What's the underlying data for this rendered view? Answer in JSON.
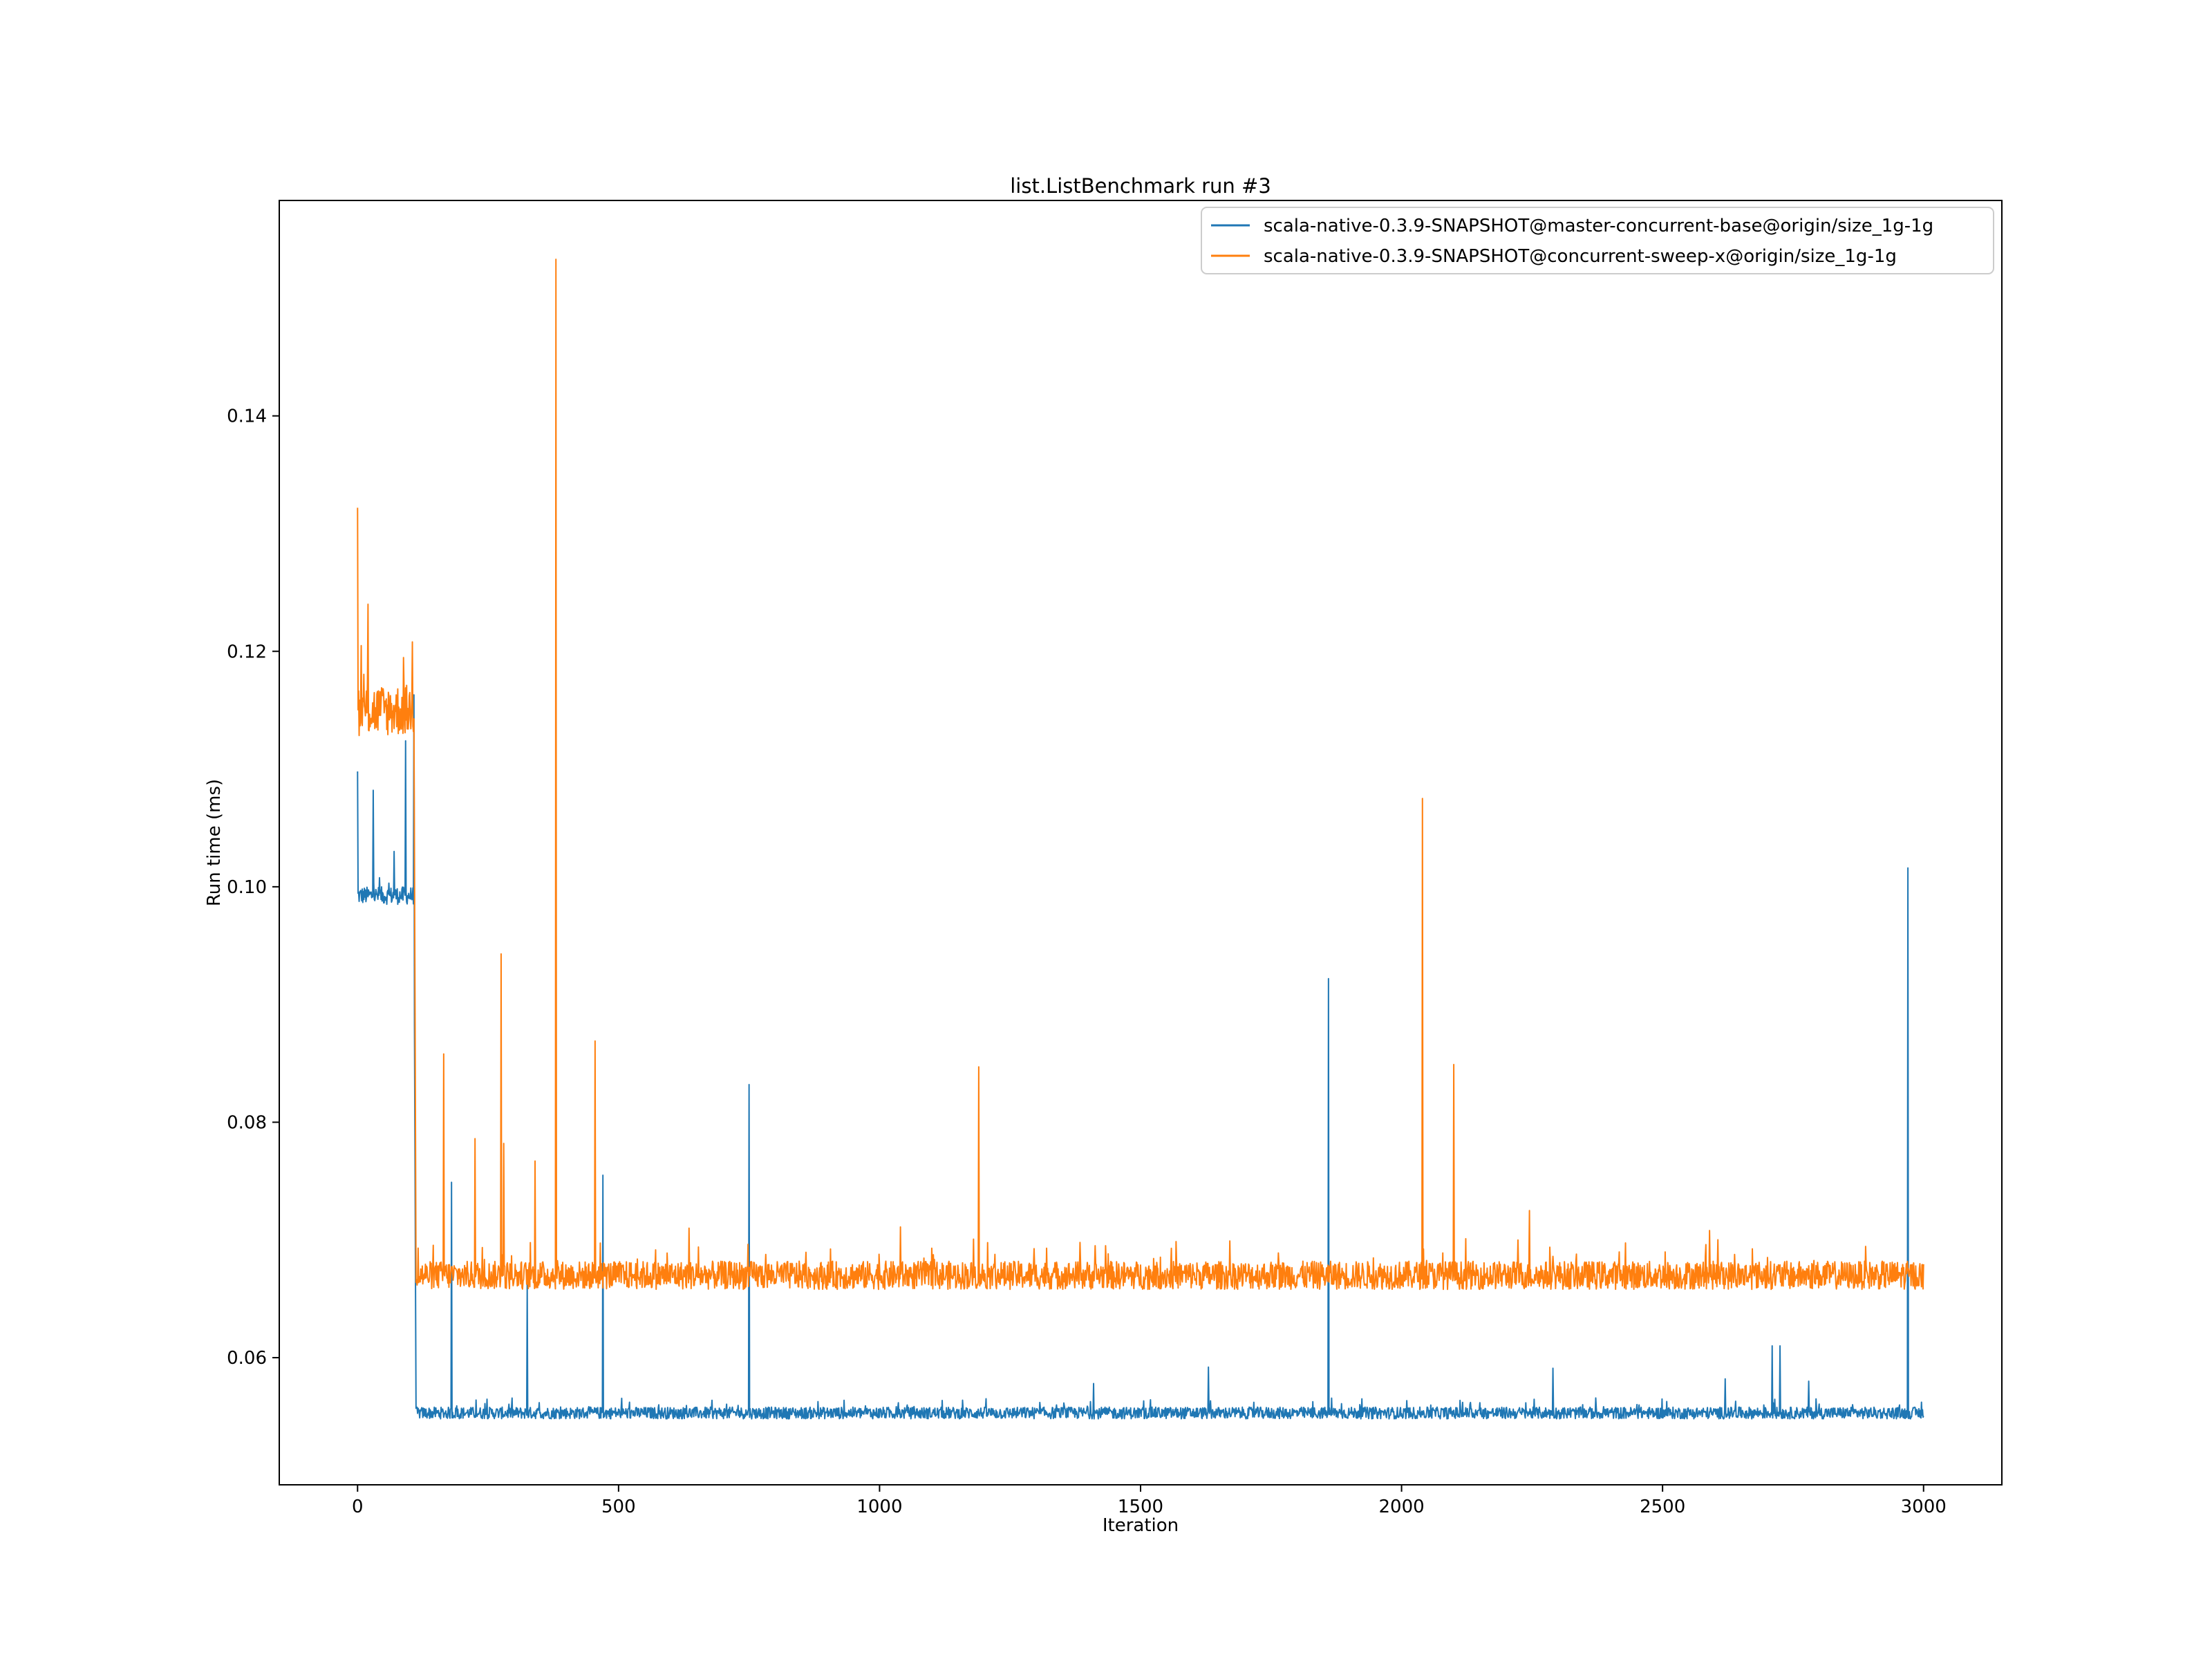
{
  "chart_data": {
    "type": "line",
    "title": "list.ListBenchmark run #3",
    "xlabel": "Iteration",
    "ylabel": "Run time (ms)",
    "xlim": [
      -150,
      3150
    ],
    "ylim": [
      0.0492,
      0.1583
    ],
    "xticks": [
      0,
      500,
      1000,
      1500,
      2000,
      2500,
      3000
    ],
    "yticks": [
      0.06,
      0.08,
      0.1,
      0.12,
      0.14
    ],
    "ytick_labels": [
      "0.06",
      "0.08",
      "0.10",
      "0.12",
      "0.14"
    ],
    "grid": false,
    "legend_position": "upper right",
    "series": [
      {
        "name": "scala-native-0.3.9-SNAPSHOT@master-concurrent-base@origin/size_1g-1g",
        "color": "#1f77b4",
        "band": [
          {
            "x_start": 0,
            "x_end": 108,
            "low": 0.0985,
            "high": 0.1
          },
          {
            "x_start": 112,
            "x_end": 3000,
            "low": 0.0548,
            "high": 0.0558
          }
        ],
        "spikes": [
          {
            "x": 0,
            "y": 0.1098
          },
          {
            "x": 30,
            "y": 0.1082
          },
          {
            "x": 70,
            "y": 0.103
          },
          {
            "x": 92,
            "y": 0.1124
          },
          {
            "x": 108,
            "y": 0.1163
          },
          {
            "x": 180,
            "y": 0.0749
          },
          {
            "x": 325,
            "y": 0.0662
          },
          {
            "x": 470,
            "y": 0.0755
          },
          {
            "x": 750,
            "y": 0.0832
          },
          {
            "x": 1410,
            "y": 0.0578
          },
          {
            "x": 1630,
            "y": 0.0592
          },
          {
            "x": 1860,
            "y": 0.0922
          },
          {
            "x": 2290,
            "y": 0.0591
          },
          {
            "x": 2620,
            "y": 0.0582
          },
          {
            "x": 2710,
            "y": 0.061
          },
          {
            "x": 2725,
            "y": 0.061
          },
          {
            "x": 2780,
            "y": 0.058
          },
          {
            "x": 2970,
            "y": 0.1016
          }
        ]
      },
      {
        "name": "scala-native-0.3.9-SNAPSHOT@concurrent-sweep-x@origin/size_1g-1g",
        "color": "#ff7f0e",
        "band": [
          {
            "x_start": 0,
            "x_end": 108,
            "low": 0.1128,
            "high": 0.1172
          },
          {
            "x_start": 112,
            "x_end": 3000,
            "low": 0.0658,
            "high": 0.0682
          }
        ],
        "spikes": [
          {
            "x": 0,
            "y": 0.1322
          },
          {
            "x": 20,
            "y": 0.124
          },
          {
            "x": 105,
            "y": 0.1208
          },
          {
            "x": 165,
            "y": 0.0858
          },
          {
            "x": 225,
            "y": 0.0786
          },
          {
            "x": 275,
            "y": 0.0943
          },
          {
            "x": 280,
            "y": 0.0782
          },
          {
            "x": 340,
            "y": 0.0767
          },
          {
            "x": 380,
            "y": 0.1533
          },
          {
            "x": 455,
            "y": 0.0869
          },
          {
            "x": 635,
            "y": 0.071
          },
          {
            "x": 1040,
            "y": 0.0711
          },
          {
            "x": 1190,
            "y": 0.0847
          },
          {
            "x": 2040,
            "y": 0.1075
          },
          {
            "x": 2100,
            "y": 0.0849
          },
          {
            "x": 2245,
            "y": 0.0725
          },
          {
            "x": 2590,
            "y": 0.0708
          }
        ]
      }
    ]
  }
}
